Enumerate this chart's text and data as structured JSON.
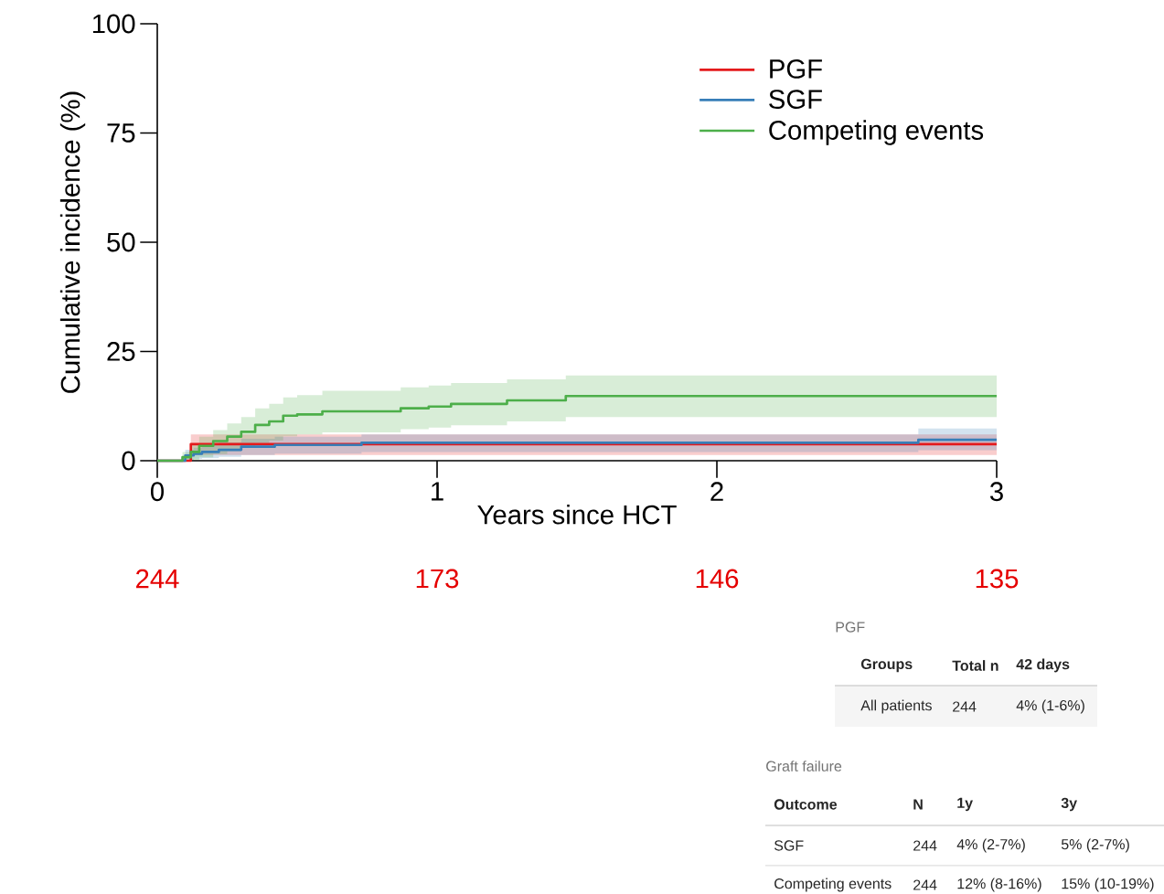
{
  "chart_data": {
    "type": "step",
    "xlabel": "Years since HCT",
    "ylabel": "Cumulative incidence (%)",
    "xlim": [
      0,
      3
    ],
    "xticks": [
      0,
      1,
      2,
      3
    ],
    "ylim": [
      0,
      100
    ],
    "yticks": [
      0,
      25,
      50,
      75,
      100
    ],
    "legend": "top right",
    "series": [
      {
        "name": "PGF",
        "color": "#e41a1c",
        "x": [
          0,
          0.115,
          0.12,
          3
        ],
        "values": [
          0,
          0,
          3.8,
          3.8
        ],
        "lower": [
          0,
          0,
          1.3,
          1.3
        ],
        "upper": [
          0,
          0,
          6,
          6
        ]
      },
      {
        "name": "SGF",
        "color": "#377eb8",
        "x": [
          0,
          0.1,
          0.13,
          0.16,
          0.22,
          0.3,
          0.42,
          0.73,
          2.72,
          3
        ],
        "values": [
          0,
          1.2,
          1.6,
          2.0,
          2.5,
          3.2,
          3.6,
          4.1,
          4.8,
          4.8
        ],
        "lower": [
          0,
          0.2,
          0.4,
          0.6,
          0.9,
          1.3,
          1.6,
          2.0,
          2.4,
          2.4
        ],
        "upper": [
          0,
          2.5,
          3,
          3.6,
          4.2,
          5,
          5.5,
          6,
          7.4,
          7.4
        ]
      },
      {
        "name": "Competing events",
        "color": "#4daf4a",
        "x": [
          0,
          0.065,
          0.09,
          0.12,
          0.15,
          0.2,
          0.25,
          0.3,
          0.35,
          0.4,
          0.45,
          0.5,
          0.59,
          0.87,
          0.97,
          1.05,
          1.25,
          1.46,
          3
        ],
        "values": [
          0,
          0,
          0.8,
          2,
          3.4,
          4.5,
          5.5,
          6.6,
          8.2,
          9,
          10.3,
          10.6,
          11.3,
          12,
          12.4,
          13,
          13.8,
          14.8,
          14.8
        ],
        "lower": [
          0,
          0,
          0,
          0.2,
          0.8,
          1.5,
          2.2,
          3,
          4,
          4.6,
          5.6,
          6,
          6.5,
          7.2,
          7.6,
          8.1,
          9,
          10,
          10
        ],
        "upper": [
          0,
          0,
          2,
          4,
          5.5,
          7,
          8.5,
          10,
          12,
          13,
          14.5,
          15,
          16,
          16.8,
          17.2,
          17.8,
          18.6,
          19.5,
          19.5
        ]
      }
    ],
    "annotations": [
      "244",
      "173",
      "146",
      "135",
      "PGF",
      "Groups",
      "Total n",
      "42 days",
      "All patients",
      "244",
      "4% (1-6%)",
      "Graft failure",
      "Outcome",
      "N",
      "1y",
      "3y",
      "SGF",
      "244",
      "4% (2-7%)",
      "5% (2-7%)",
      "Competing events",
      "244",
      "12% (8-16%)",
      "15% (10-19%)"
    ]
  }
}
